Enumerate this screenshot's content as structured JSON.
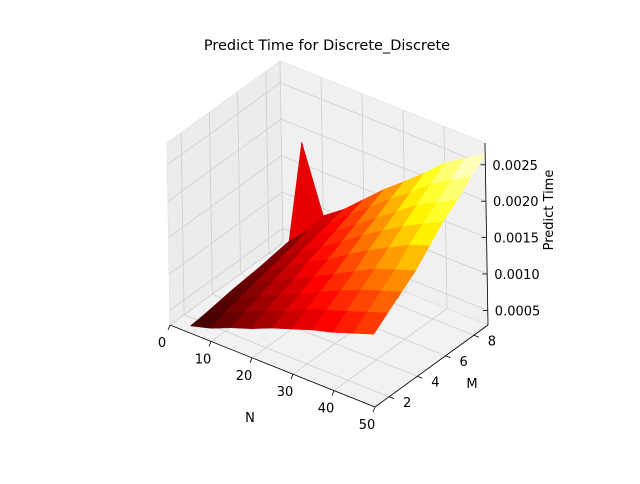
{
  "chart_data": {
    "type": "surface3d",
    "title": "Predict Time for Discrete_Discrete",
    "xlabel": "N",
    "ylabel": "M",
    "zlabel": "Predict Time",
    "xlim": [
      0,
      50
    ],
    "ylim": [
      1,
      9
    ],
    "zlim": [
      0.0003,
      0.0028
    ],
    "x_ticks": [
      0,
      10,
      20,
      30,
      40,
      50
    ],
    "x_tick_labels": [
      "0",
      "10",
      "20",
      "30",
      "40",
      "50"
    ],
    "y_ticks": [
      2,
      4,
      6,
      8
    ],
    "y_tick_labels": [
      "2",
      "4",
      "6",
      "8"
    ],
    "z_ticks": [
      0.0005,
      0.001,
      0.0015,
      0.002,
      0.0025
    ],
    "z_tick_labels": [
      "0.0005",
      "0.0010",
      "0.0015",
      "0.0020",
      "0.0025"
    ],
    "colormap": "hot",
    "grid": true,
    "N": [
      5,
      10,
      15,
      20,
      25,
      30,
      35,
      40,
      45,
      50
    ],
    "M": [
      1,
      2,
      3,
      4,
      5,
      6,
      7,
      8,
      9
    ],
    "predict_time": [
      [
        0.0004,
        0.00048,
        0.0006,
        0.0007,
        0.00082,
        0.00092,
        0.00102,
        0.0011,
        0.0012,
        0.0013
      ],
      [
        0.00042,
        0.00055,
        0.00068,
        0.0008,
        0.00092,
        0.00105,
        0.00115,
        0.00125,
        0.00135,
        0.00145
      ],
      [
        0.00045,
        0.0006,
        0.00075,
        0.00088,
        0.001,
        0.00115,
        0.00128,
        0.0014,
        0.0015,
        0.0016
      ],
      [
        0.00048,
        0.00065,
        0.00082,
        0.00095,
        0.0011,
        0.00125,
        0.0014,
        0.00155,
        0.00165,
        0.00175
      ],
      [
        0.0005,
        0.0007,
        0.00088,
        0.00105,
        0.0012,
        0.00138,
        0.00155,
        0.0017,
        0.00185,
        0.00195
      ],
      [
        0.00052,
        0.00075,
        0.00095,
        0.00112,
        0.0013,
        0.0015,
        0.00168,
        0.00185,
        0.002,
        0.00215
      ],
      [
        0.00055,
        0.0008,
        0.001,
        0.0012,
        0.0014,
        0.0016,
        0.0018,
        0.002,
        0.00215,
        0.0023
      ],
      [
        0.00058,
        0.00085,
        0.00105,
        0.00128,
        0.0015,
        0.00172,
        0.00192,
        0.00215,
        0.00232,
        0.00248
      ],
      [
        0.0006,
        0.0009,
        0.0011,
        0.00135,
        0.0016,
        0.00182,
        0.00205,
        0.0023,
        0.00248,
        0.00265
      ]
    ],
    "spike": {
      "N": 5,
      "M": 9,
      "value": 0.0018
    }
  }
}
